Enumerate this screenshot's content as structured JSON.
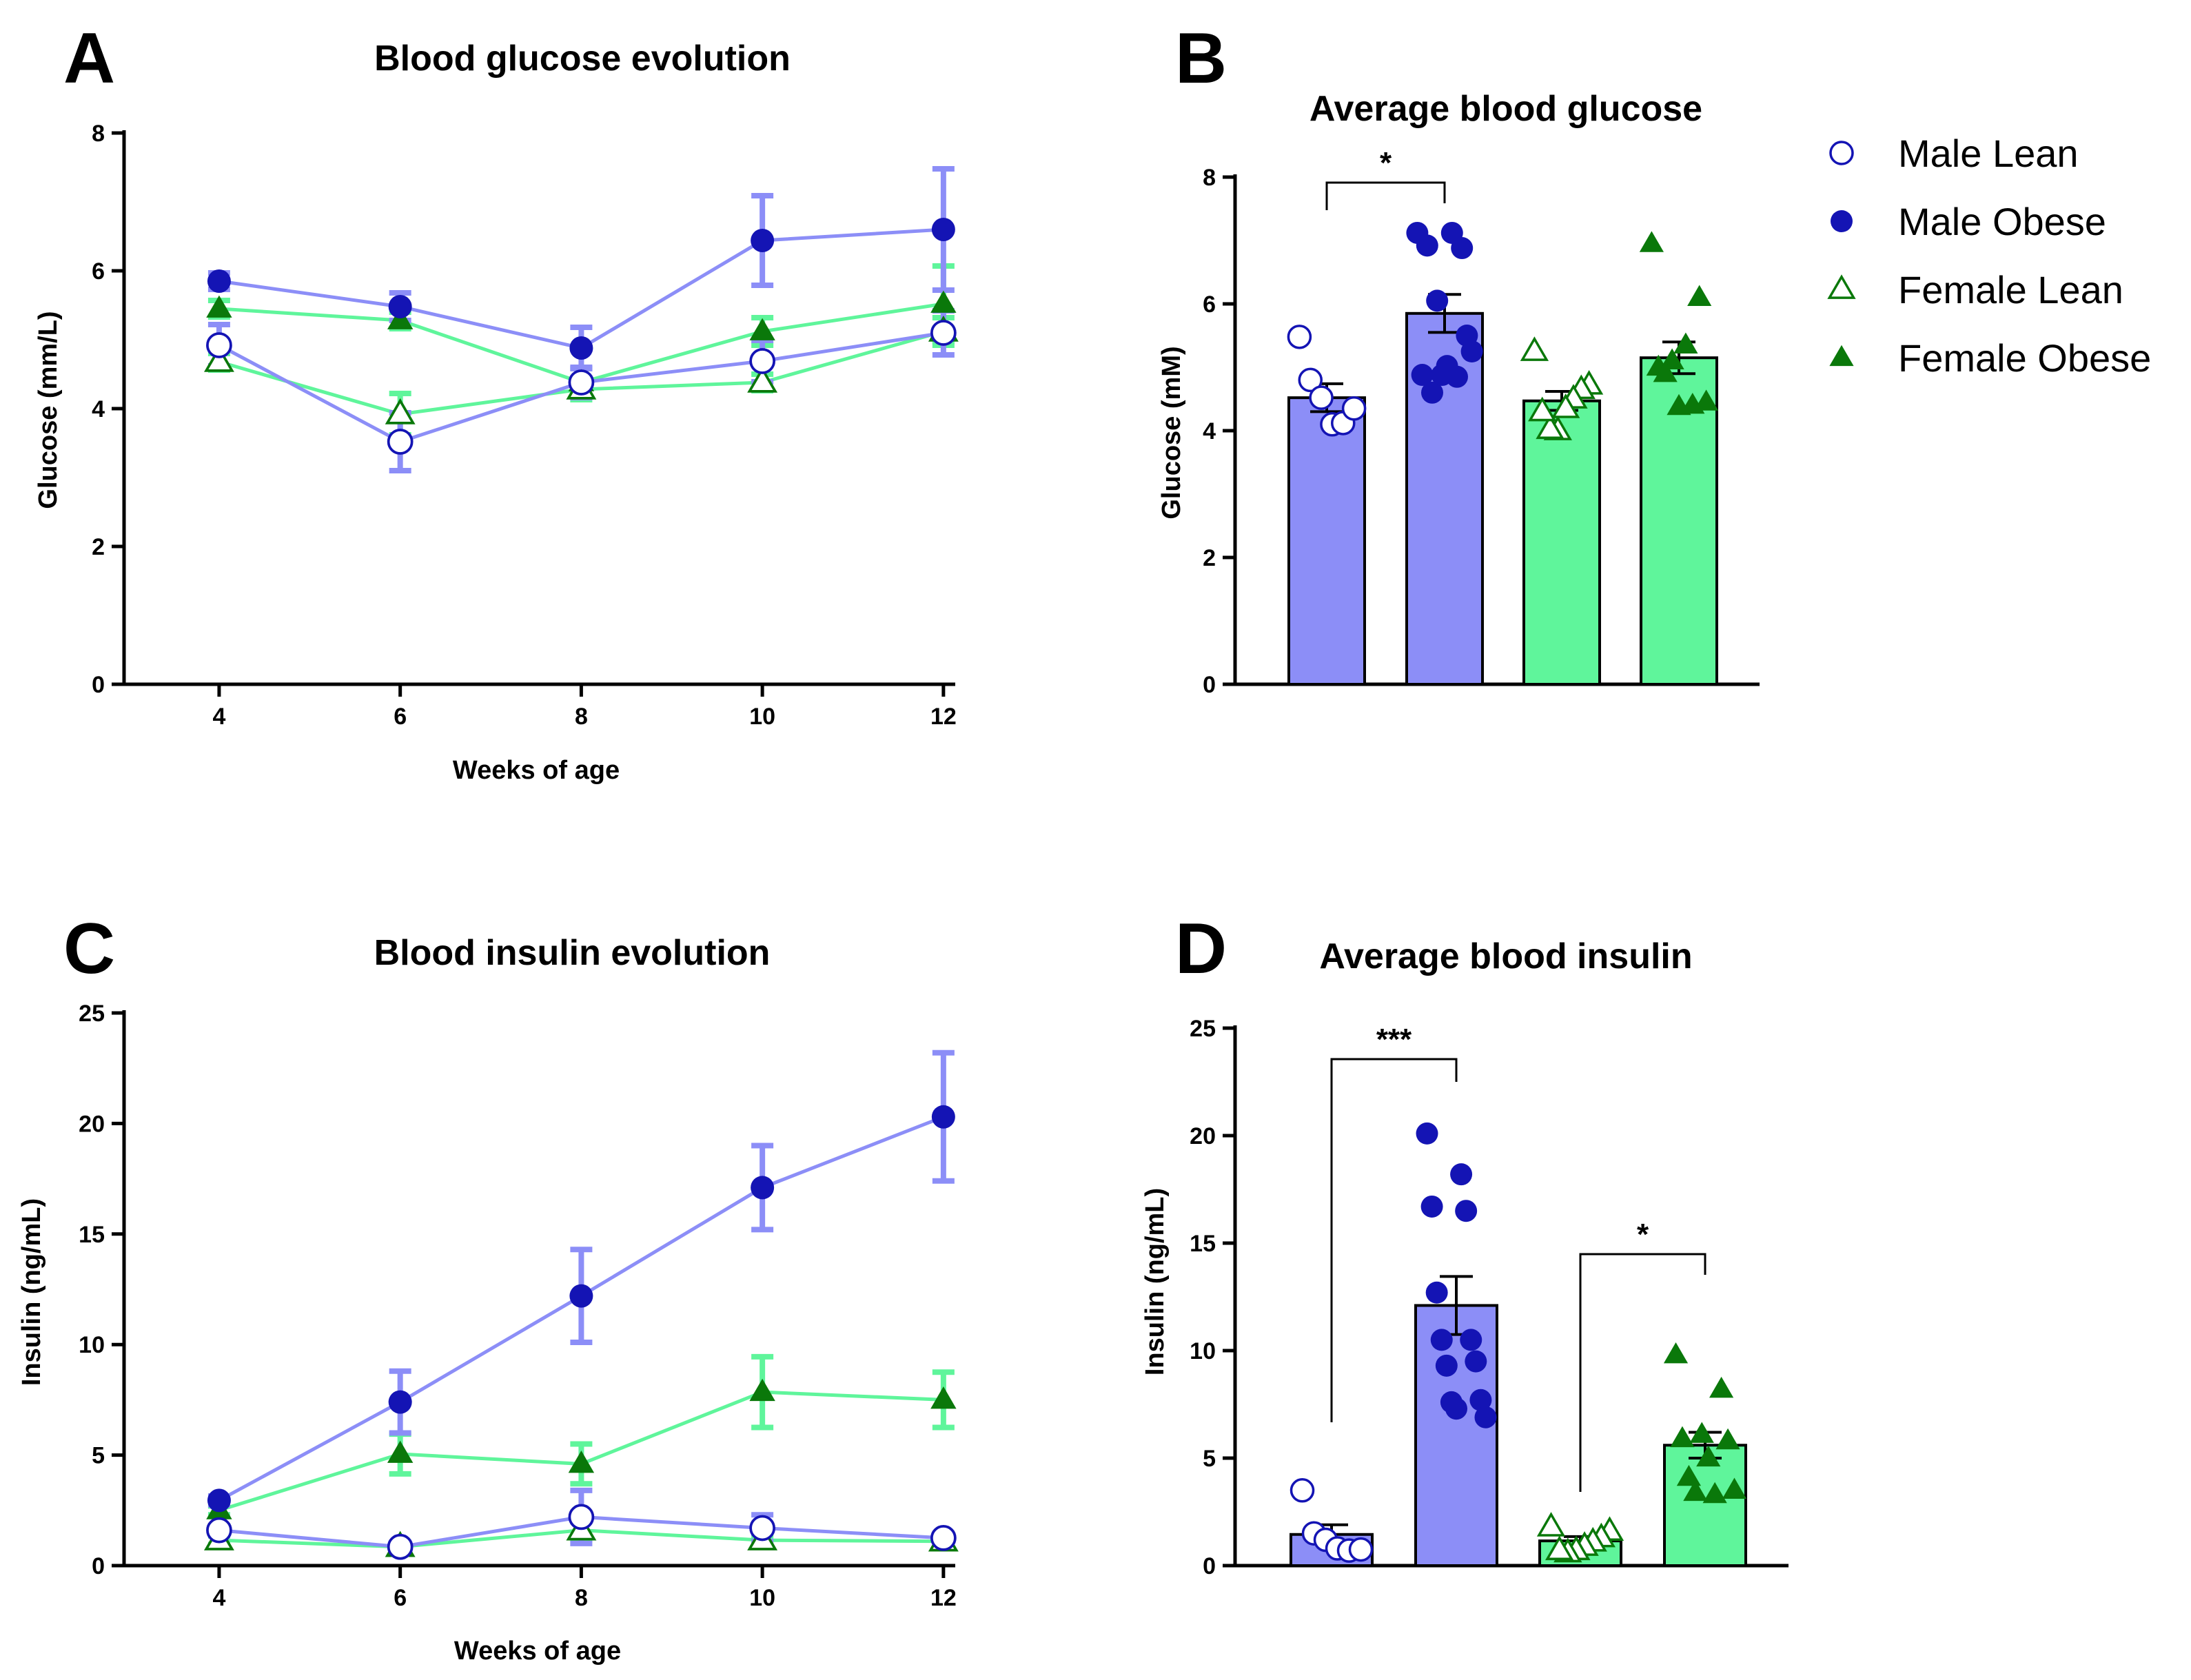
{
  "colors": {
    "male_line": "#8c8ef7",
    "male_marker": "#1414b4",
    "female_line": "#5ff59b",
    "female_marker": "#0a780a",
    "male_bar": "#8c8ef7",
    "female_bar": "#5ff59b"
  },
  "legend": {
    "items": [
      {
        "label": "Male Lean",
        "marker": "circle-open",
        "color": "#1414b4"
      },
      {
        "label": "Male Obese",
        "marker": "circle-filled",
        "color": "#1414b4"
      },
      {
        "label": "Female Lean",
        "marker": "triangle-open",
        "color": "#0a780a"
      },
      {
        "label": "Female Obese",
        "marker": "triangle-filled",
        "color": "#0a780a"
      }
    ]
  },
  "chart_data": [
    {
      "panel": "A",
      "type": "line",
      "title": "Blood glucose evolution",
      "xlabel": "Weeks of age",
      "ylabel": "Glucose (mm/L)",
      "x": [
        4,
        6,
        8,
        10,
        12
      ],
      "xticks": [
        "4",
        "6",
        "8",
        "10",
        "12"
      ],
      "yticks": [
        "0",
        "2",
        "4",
        "6",
        "8"
      ],
      "ylim": [
        0,
        8
      ],
      "series": [
        {
          "name": "Male Lean",
          "values": [
            4.92,
            3.52,
            4.38,
            4.69,
            5.1
          ],
          "err": [
            0.3,
            0.42,
            0.22,
            0.3,
            0.32
          ]
        },
        {
          "name": "Male Obese",
          "values": [
            5.85,
            5.48,
            4.88,
            6.44,
            6.6
          ],
          "err": [
            0.12,
            0.2,
            0.3,
            0.65,
            0.88
          ]
        },
        {
          "name": "Female Lean",
          "values": [
            4.68,
            3.92,
            4.28,
            4.38,
            5.12
          ],
          "err": [
            0.12,
            0.3,
            0.15,
            0.12,
            0.2
          ]
        },
        {
          "name": "Female Obese",
          "values": [
            5.45,
            5.28,
            4.38,
            5.12,
            5.52
          ],
          "err": [
            0.12,
            0.12,
            0.2,
            0.2,
            0.55
          ]
        }
      ]
    },
    {
      "panel": "B",
      "type": "bar",
      "title": "Average blood glucose",
      "ylabel": "Glucose (mM)",
      "yticks": [
        "0",
        "2",
        "4",
        "6",
        "8"
      ],
      "ylim": [
        0,
        8
      ],
      "categories": [
        "Male Lean",
        "Male Obese",
        "Female Lean",
        "Female Obese"
      ],
      "values": [
        4.52,
        5.85,
        4.47,
        5.15
      ],
      "err": [
        0.22,
        0.3,
        0.15,
        0.25
      ],
      "points": [
        [
          5.48,
          4.8,
          4.52,
          4.1,
          4.12,
          4.35
        ],
        [
          7.12,
          7.12,
          6.92,
          6.88,
          6.05,
          5.25,
          5.02,
          4.88,
          4.85,
          4.6,
          5.5,
          4.88
        ],
        [
          5.25,
          4.72,
          4.65,
          4.5,
          4.35,
          4.0,
          4.02,
          4.3
        ],
        [
          6.95,
          6.1,
          5.35,
          5.1,
          5.0,
          4.45,
          4.4,
          4.38,
          4.9
        ]
      ],
      "annotations": [
        {
          "label": "*",
          "between": [
            0,
            1
          ]
        }
      ]
    },
    {
      "panel": "C",
      "type": "line",
      "title": "Blood insulin evolution",
      "xlabel": "Weeks of age",
      "ylabel": "Insulin (ng/mL)",
      "x": [
        4,
        6,
        8,
        10,
        12
      ],
      "xticks": [
        "4",
        "6",
        "8",
        "10",
        "12"
      ],
      "yticks": [
        "0",
        "5",
        "10",
        "15",
        "20",
        "25"
      ],
      "ylim": [
        0,
        25
      ],
      "series": [
        {
          "name": "Male Lean",
          "values": [
            1.6,
            0.85,
            2.2,
            1.7,
            1.25
          ],
          "err": [
            0.2,
            0.15,
            1.2,
            0.6,
            0.2
          ]
        },
        {
          "name": "Male Obese",
          "values": [
            2.95,
            7.4,
            12.2,
            17.1,
            20.3
          ],
          "err": [
            0.2,
            1.4,
            2.1,
            1.9,
            2.9
          ]
        },
        {
          "name": "Female Lean",
          "values": [
            1.15,
            0.85,
            1.6,
            1.15,
            1.1
          ],
          "err": [
            0.2,
            0.15,
            0.4,
            0.2,
            0.2
          ]
        },
        {
          "name": "Female Obese",
          "values": [
            2.5,
            5.05,
            4.6,
            7.85,
            7.5
          ],
          "err": [
            0.2,
            0.9,
            0.9,
            1.6,
            1.25
          ]
        }
      ]
    },
    {
      "panel": "D",
      "type": "bar",
      "title": "Average blood insulin",
      "ylabel": "Insulin (ng/mL)",
      "yticks": [
        "0",
        "5",
        "10",
        "15",
        "20",
        "25"
      ],
      "ylim": [
        0,
        25
      ],
      "categories": [
        "Male Lean",
        "Male Obese",
        "Female Lean",
        "Female Obese"
      ],
      "values": [
        1.45,
        12.1,
        1.15,
        5.6
      ],
      "err": [
        0.45,
        1.35,
        0.2,
        0.6
      ],
      "points": [
        [
          3.5,
          1.5,
          1.2,
          0.8,
          0.7,
          0.75
        ],
        [
          20.1,
          18.2,
          16.7,
          16.5,
          12.7,
          10.5,
          10.5,
          9.5,
          9.3,
          7.7,
          7.6,
          6.9,
          7.3
        ],
        [
          1.8,
          1.6,
          1.3,
          1.1,
          0.9,
          0.7,
          0.6,
          0.7
        ],
        [
          9.8,
          8.2,
          6.1,
          5.9,
          5.8,
          5.0,
          4.1,
          3.5,
          3.3,
          3.4
        ]
      ],
      "annotations": [
        {
          "label": "***",
          "between": [
            0,
            1
          ]
        },
        {
          "label": "*",
          "between": [
            2,
            3
          ]
        }
      ]
    }
  ]
}
